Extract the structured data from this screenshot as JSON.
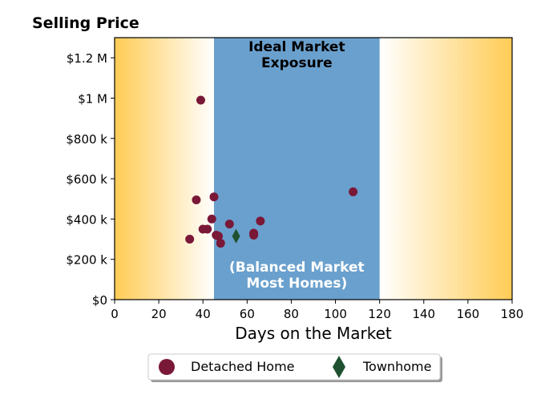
{
  "chart_data": {
    "type": "scatter",
    "title": "Selling Price",
    "xlabel": "Days on the Market",
    "ylabel": "",
    "xlim": [
      0,
      180
    ],
    "ylim": [
      0,
      1300000
    ],
    "x_ticks": [
      0,
      20,
      40,
      60,
      80,
      100,
      120,
      140,
      160,
      180
    ],
    "x_tick_labels": [
      "0",
      "20",
      "40",
      "60",
      "80",
      "100",
      "120",
      "140",
      "160",
      "180"
    ],
    "y_ticks": [
      0,
      200000,
      400000,
      600000,
      800000,
      1000000,
      1200000
    ],
    "y_tick_labels": [
      "$0",
      "$200 k",
      "$400 k",
      "$600 k",
      "$800 k",
      "$1 M",
      "$1.2 M"
    ],
    "background_gradient_colors": [
      "#ffcc55",
      "#ffffff"
    ],
    "bands": [
      {
        "x_range": [
          45,
          120
        ],
        "color": "#6aa0cd",
        "top_label": "Ideal Market\nExposure",
        "bottom_label": "(Balanced Market\nMost Homes)",
        "top_label_color": "#000000",
        "bottom_label_color": "#ffffff"
      }
    ],
    "series": [
      {
        "name": "Detached Home",
        "marker": "circle",
        "color": "#7a1838",
        "points": [
          [
            39,
            990000
          ],
          [
            34,
            300000
          ],
          [
            37,
            495000
          ],
          [
            40,
            350000
          ],
          [
            42,
            350000
          ],
          [
            44,
            400000
          ],
          [
            45,
            510000
          ],
          [
            46,
            320000
          ],
          [
            47,
            315000
          ],
          [
            48,
            280000
          ],
          [
            52,
            375000
          ],
          [
            63,
            330000
          ],
          [
            63,
            320000
          ],
          [
            66,
            390000
          ],
          [
            108,
            535000
          ]
        ]
      },
      {
        "name": "Townhome",
        "marker": "diamond",
        "color": "#1f5130",
        "points": [
          [
            55,
            315000
          ]
        ]
      }
    ],
    "grid": false,
    "legend_position": "bottom-center"
  }
}
